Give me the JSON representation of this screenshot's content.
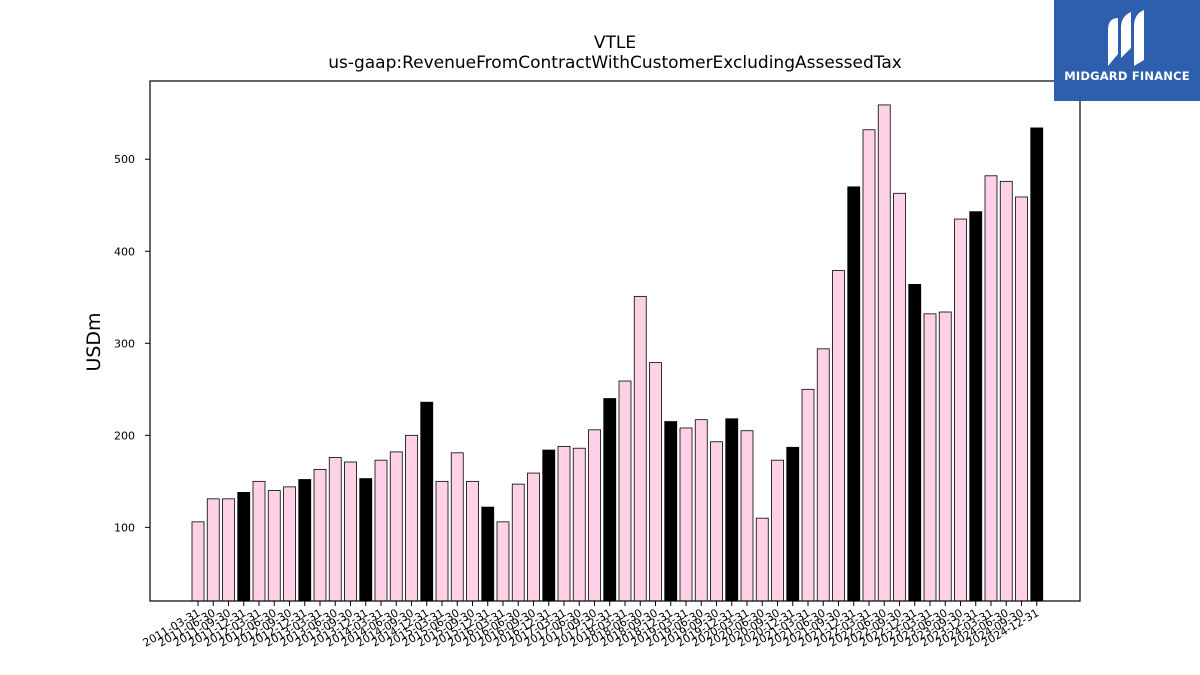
{
  "chart_data": {
    "type": "bar",
    "title": "VTLE",
    "subtitle": "us-gaap:RevenueFromContractWithCustomerExcludingAssessedTax",
    "xlabel": "",
    "ylabel": "USDm",
    "ylim": [
      20,
      585
    ],
    "yticks": [
      100,
      200,
      300,
      400,
      500
    ],
    "grid": false,
    "colors": {
      "quarter": "#ffd1e6",
      "fiscal_year_end": "#000000",
      "edge": "#000000"
    },
    "categories": [
      "2011-03-31",
      "2011-06-30",
      "2011-09-30",
      "2011-12-31",
      "2012-03-31",
      "2012-06-30",
      "2012-09-30",
      "2012-12-31",
      "2013-03-31",
      "2013-06-30",
      "2013-09-30",
      "2013-12-31",
      "2014-03-31",
      "2014-06-30",
      "2014-09-30",
      "2014-12-31",
      "2015-03-31",
      "2015-06-30",
      "2015-09-30",
      "2015-12-31",
      "2016-03-31",
      "2016-06-30",
      "2016-09-30",
      "2016-12-31",
      "2017-03-31",
      "2017-06-30",
      "2017-09-30",
      "2017-12-31",
      "2018-03-31",
      "2018-06-30",
      "2018-09-30",
      "2018-12-31",
      "2019-03-31",
      "2019-06-30",
      "2019-09-30",
      "2019-12-31",
      "2020-03-31",
      "2020-06-30",
      "2020-09-30",
      "2020-12-31",
      "2021-03-31",
      "2021-06-30",
      "2021-09-30",
      "2021-12-31",
      "2022-03-31",
      "2022-06-30",
      "2022-09-30",
      "2022-12-31",
      "2023-03-31",
      "2023-06-30",
      "2023-09-30",
      "2023-12-31",
      "2024-03-31",
      "2024-06-30",
      "2024-09-30",
      "2024-12-31"
    ],
    "values": [
      106,
      131,
      131,
      138,
      150,
      140,
      144,
      152,
      163,
      176,
      171,
      153,
      173,
      182,
      200,
      236,
      150,
      181,
      150,
      122,
      106,
      147,
      159,
      184,
      188,
      186,
      206,
      240,
      259,
      351,
      279,
      215,
      208,
      217,
      193,
      218,
      205,
      110,
      173,
      187,
      250,
      294,
      379,
      470,
      532,
      559,
      463,
      364,
      332,
      334,
      435,
      443,
      482,
      476,
      459,
      534
    ],
    "highlight": [
      false,
      false,
      false,
      true,
      false,
      false,
      false,
      true,
      false,
      false,
      false,
      true,
      false,
      false,
      false,
      true,
      false,
      false,
      false,
      true,
      false,
      false,
      false,
      true,
      false,
      false,
      false,
      true,
      false,
      false,
      false,
      true,
      false,
      false,
      false,
      true,
      false,
      false,
      false,
      true,
      false,
      false,
      false,
      true,
      false,
      false,
      false,
      true,
      false,
      false,
      false,
      true,
      false,
      false,
      false,
      true
    ]
  },
  "logo": {
    "text": "MIDGARD FINANCE",
    "icon": "midgard-logo-icon"
  }
}
